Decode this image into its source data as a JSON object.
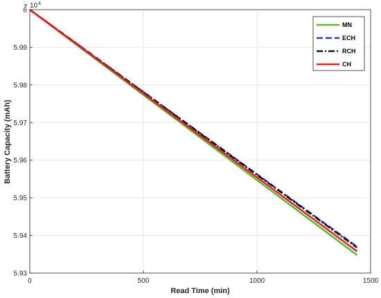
{
  "chart_data": {
    "type": "line",
    "title": "",
    "xlabel": "Read Time (min)",
    "ylabel": "Battery Capacity (mAh)",
    "y_exponent_label": "× 10^4",
    "y_exponent_base": "10",
    "y_exponent_power": "4",
    "xlim": [
      0,
      1500
    ],
    "ylim": [
      5.93,
      6.0
    ],
    "x_ticks": [
      0,
      500,
      1000,
      1500
    ],
    "x_tick_labels": [
      "0",
      "500",
      "1000",
      "1500"
    ],
    "y_ticks": [
      5.93,
      5.94,
      5.95,
      5.96,
      5.97,
      5.98,
      5.99,
      6.0
    ],
    "y_tick_labels": [
      "5.93",
      "5.94",
      "5.95",
      "5.96",
      "5.97",
      "5.98",
      "5.99",
      "6"
    ],
    "grid": true,
    "legend_position": "top-right",
    "series": [
      {
        "name": "MN",
        "color": "#5cb82e",
        "style": "solid",
        "x": [
          0,
          1440
        ],
        "values": [
          6.0,
          5.9348
        ]
      },
      {
        "name": "ECH",
        "color": "#1f3fb4",
        "style": "dashed",
        "x": [
          0,
          1440
        ],
        "values": [
          6.0,
          5.937
        ]
      },
      {
        "name": "RCH",
        "color": "#111111",
        "style": "dashdot",
        "x": [
          0,
          1440
        ],
        "values": [
          6.0,
          5.9368
        ]
      },
      {
        "name": "CH",
        "color": "#e8201f",
        "style": "solid",
        "x": [
          0,
          1440
        ],
        "values": [
          6.0,
          5.9358
        ]
      }
    ]
  }
}
